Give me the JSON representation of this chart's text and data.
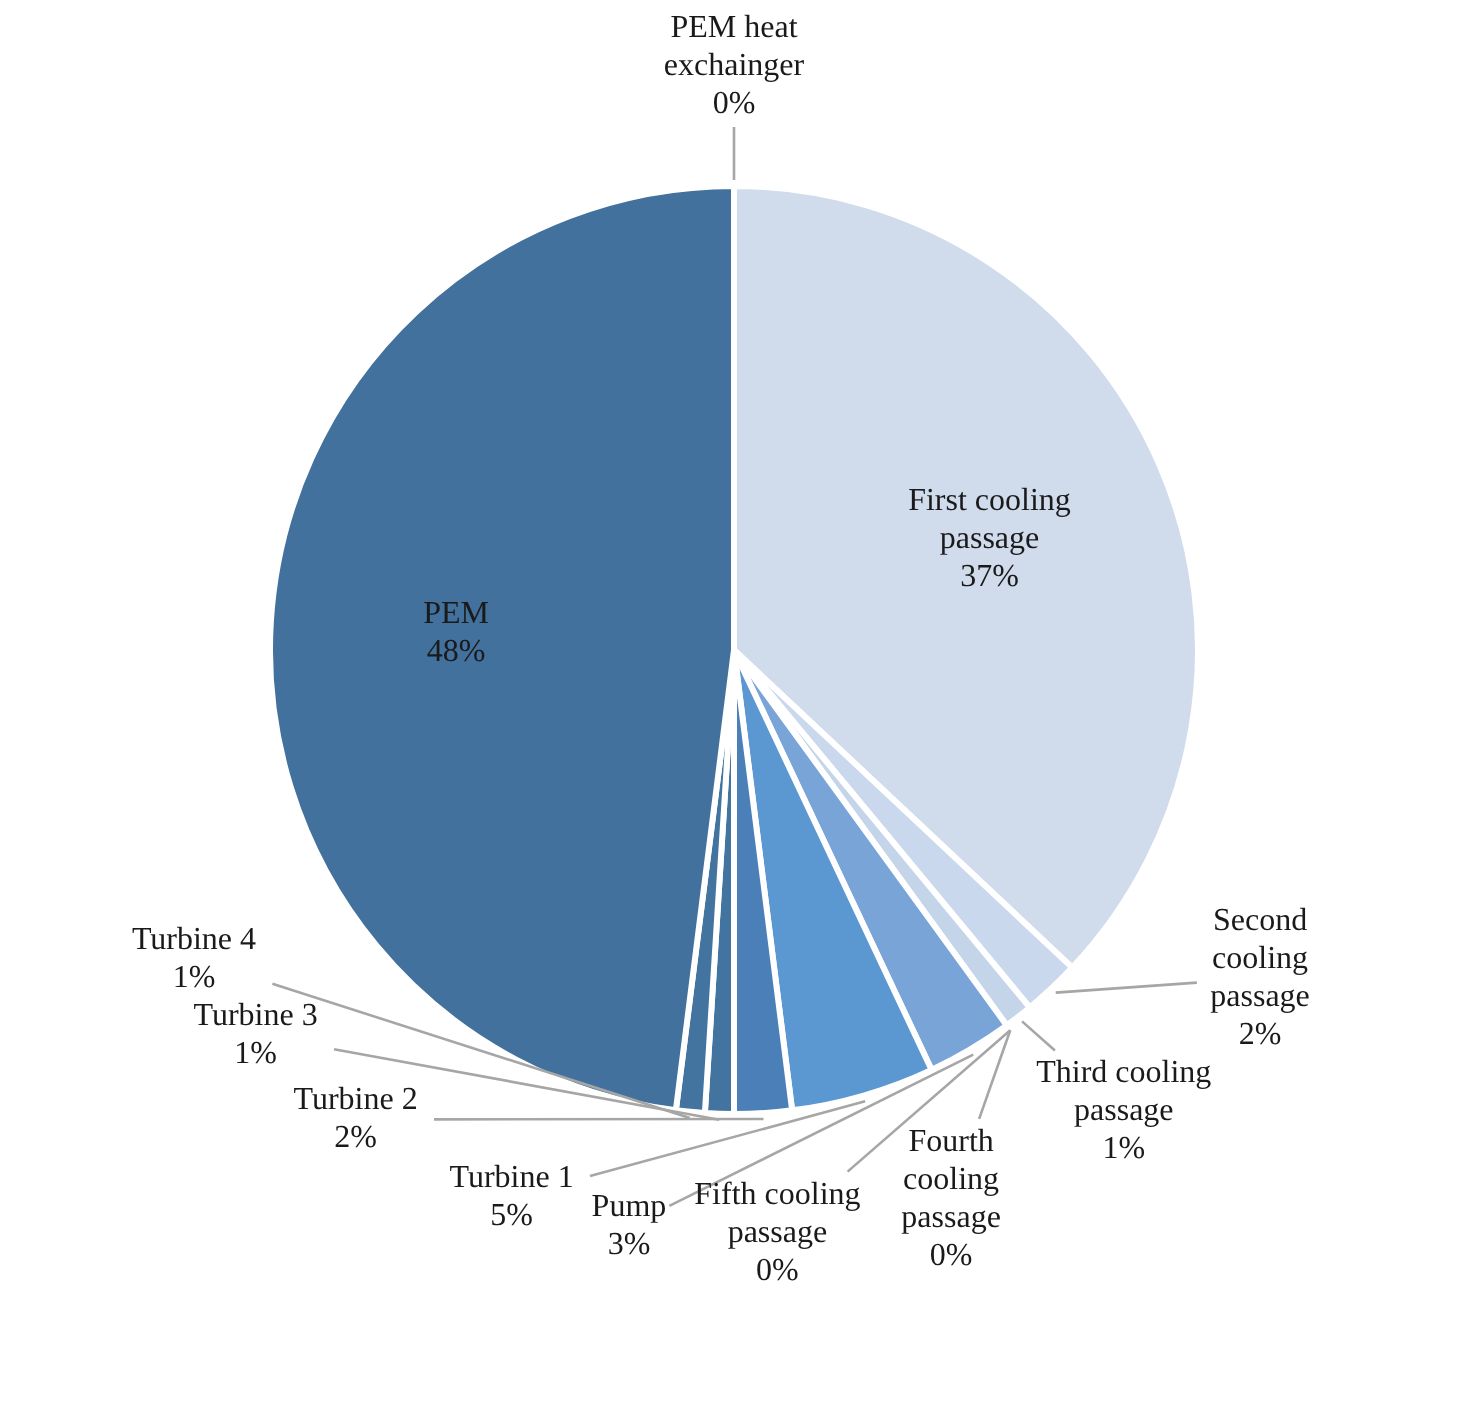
{
  "chart_data": {
    "type": "pie",
    "categories": [
      "PEM heat exchainger",
      "First cooling passage",
      "Second cooling passage",
      "Third cooling passage",
      "Fourth cooling passage",
      "Fifth cooling passage",
      "Pump",
      "Turbine 1",
      "Turbine 2",
      "Turbine 3",
      "Turbine 4",
      "PEM"
    ],
    "values": [
      0,
      37,
      2,
      1,
      0,
      0,
      3,
      5,
      2,
      1,
      1,
      48
    ],
    "value_labels": [
      "0%",
      "37%",
      "2%",
      "1%",
      "0%",
      "0%",
      "3%",
      "5%",
      "2%",
      "1%",
      "1%",
      "48%"
    ],
    "colors": [
      "#d0dcec",
      "#d0dcec",
      "#c9d8ec",
      "#c4d5ea",
      "#b8cde8",
      "#a9c3e5",
      "#79a4d8",
      "#5b98d2",
      "#4a7fb8",
      "#43739f",
      "#43739f",
      "#41719c"
    ]
  }
}
